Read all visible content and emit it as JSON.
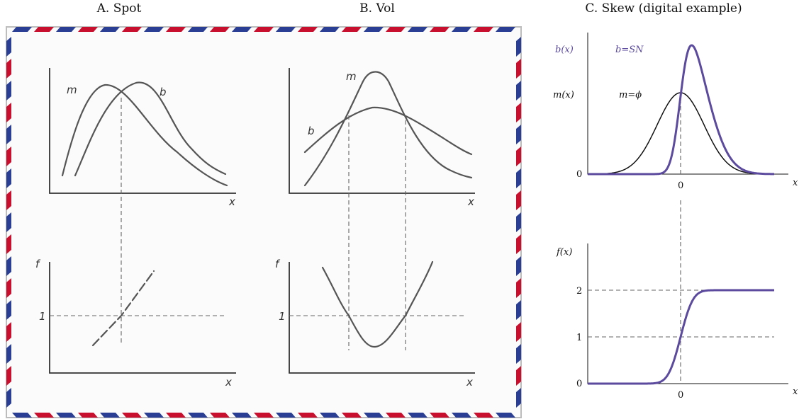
{
  "titles": {
    "a": "A. Spot",
    "b": "B. Vol",
    "c": "C. Skew (digital example)"
  },
  "sketch_labels": {
    "m": "m",
    "b": "b",
    "x": "x",
    "f": "f",
    "one": "1"
  },
  "panel_c": {
    "top": {
      "b_axis_label": "b(x)",
      "b_curve_label": "b=SN",
      "m_axis_label": "m(x)",
      "m_curve_label": "m=ϕ",
      "y_tick_zero": "0",
      "x_tick_zero": "0",
      "x_label": "x"
    },
    "bottom": {
      "f_axis_label": "f(x)",
      "y_tick_two": "2",
      "y_tick_one": "1",
      "y_tick_zero": "0",
      "x_tick_zero": "0",
      "x_label": "x"
    }
  },
  "colors": {
    "border_red": "#c8102e",
    "border_blue": "#2a3f94",
    "skew_purple": "#5b4a9e",
    "normal_black": "#111111"
  }
}
